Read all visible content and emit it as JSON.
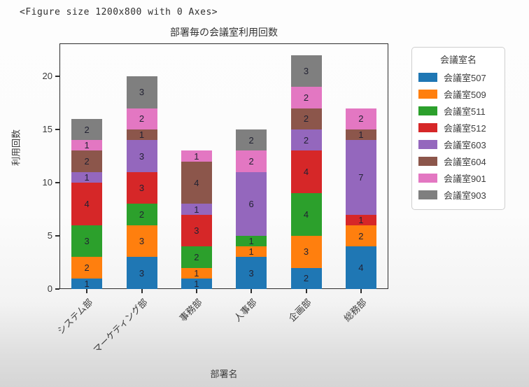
{
  "figure_text": "<Figure size 1200x800 with 0 Axes>",
  "chart_data": {
    "type": "bar",
    "stacked": true,
    "title": "部署毎の会議室利用回数",
    "xlabel": "部署名",
    "ylabel": "利用回数",
    "categories": [
      "システム部",
      "マーケティング部",
      "事務部",
      "人事部",
      "企画部",
      "総務部"
    ],
    "series": [
      {
        "name": "会議室507",
        "color": "#1f77b4",
        "values": [
          1,
          3,
          1,
          3,
          2,
          4
        ]
      },
      {
        "name": "会議室509",
        "color": "#ff7f0e",
        "values": [
          2,
          3,
          1,
          1,
          3,
          2
        ]
      },
      {
        "name": "会議室511",
        "color": "#2ca02c",
        "values": [
          3,
          2,
          2,
          1,
          4,
          0
        ]
      },
      {
        "name": "会議室512",
        "color": "#d62728",
        "values": [
          4,
          3,
          3,
          0,
          4,
          1
        ]
      },
      {
        "name": "会議室603",
        "color": "#9467bd",
        "values": [
          1,
          3,
          1,
          6,
          2,
          7
        ]
      },
      {
        "name": "会議室604",
        "color": "#8c564b",
        "values": [
          2,
          1,
          4,
          0,
          2,
          1
        ]
      },
      {
        "name": "会議室901",
        "color": "#e377c2",
        "values": [
          1,
          2,
          1,
          2,
          2,
          2
        ]
      },
      {
        "name": "会議室903",
        "color": "#7f7f7f",
        "values": [
          2,
          3,
          0,
          2,
          3,
          0
        ]
      }
    ],
    "totals": [
      16,
      20,
      13,
      15,
      22,
      17
    ],
    "yticks": [
      0,
      5,
      10,
      15,
      20
    ],
    "ylim": [
      0,
      23.1
    ],
    "bar_labels": true,
    "grid": false,
    "legend_title": "会議室名",
    "legend_position": "right",
    "xtick_rotation": 45
  }
}
